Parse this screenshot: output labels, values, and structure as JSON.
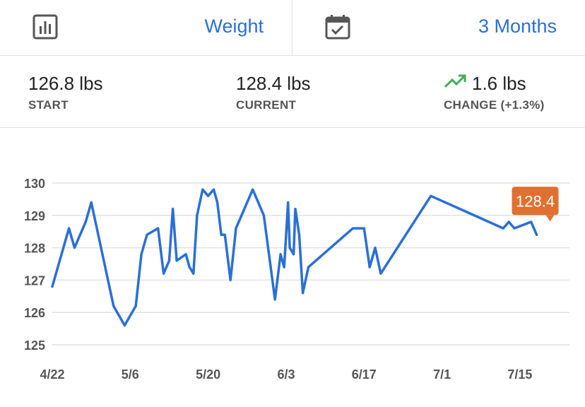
{
  "header": {
    "metric_icon": "bar-chart-icon",
    "metric_label": "Weight",
    "range_icon": "calendar-check-icon",
    "range_label": "3 Months",
    "accent_color": "#2a6fd6"
  },
  "stats": {
    "start": {
      "value": "126.8 lbs",
      "label": "START"
    },
    "current": {
      "value": "128.4 lbs",
      "label": "CURRENT"
    },
    "change": {
      "value": "1.6 lbs",
      "label": "CHANGE (+1.3%)",
      "trend_icon": "trending-up-icon",
      "trend_color": "#3fae5a"
    }
  },
  "chart_data": {
    "type": "line",
    "title": "",
    "xlabel": "",
    "ylabel": "",
    "x_ticks": [
      "4/22",
      "5/6",
      "5/20",
      "6/3",
      "6/17",
      "7/1",
      "7/15"
    ],
    "y_ticks": [
      125,
      126,
      127,
      128,
      129,
      130
    ],
    "ylim": [
      125,
      130
    ],
    "grid": true,
    "line_color": "#2a6fd6",
    "callout": {
      "label": "128.4",
      "color": "#e07030"
    },
    "series": [
      {
        "x": [
          "4/22",
          "4/25",
          "4/26",
          "4/28",
          "4/29",
          "5/3",
          "5/5",
          "5/7",
          "5/8",
          "5/9",
          "5/11",
          "5/12",
          "5/13",
          "5/14",
          "5/14",
          "5/16",
          "5/17",
          "5/17",
          "5/18",
          "5/19",
          "5/20",
          "5/21",
          "5/22",
          "5/22",
          "5/23",
          "5/24",
          "5/25",
          "5/28",
          "5/30",
          "6/1",
          "6/2",
          "6/3",
          "6/3",
          "6/4",
          "6/4",
          "6/5",
          "6/5",
          "6/6",
          "6/7",
          "6/15",
          "6/17",
          "6/18",
          "6/19",
          "6/20",
          "6/29",
          "7/12",
          "7/13",
          "7/14",
          "7/17",
          "7/18"
        ],
        "values": [
          126.8,
          128.6,
          128.0,
          128.8,
          129.4,
          126.2,
          125.6,
          126.2,
          127.8,
          128.4,
          128.6,
          127.2,
          127.6,
          129.2,
          127.6,
          127.8,
          127.4,
          127.2,
          129.0,
          129.8,
          129.6,
          129.8,
          129.4,
          128.4,
          128.4,
          127.0,
          128.6,
          129.8,
          129.0,
          126.4,
          127.8,
          127.4,
          129.4,
          128.0,
          127.8,
          129.2,
          128.4,
          126.6,
          127.4,
          128.6,
          128.6,
          127.4,
          128.0,
          127.2,
          129.6,
          128.6,
          128.8,
          128.6,
          128.8,
          128.4
        ]
      }
    ]
  }
}
